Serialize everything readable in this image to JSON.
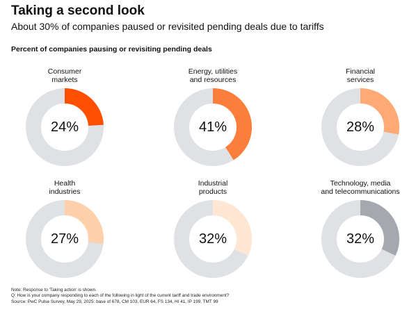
{
  "header": {
    "title": "Taking a second look",
    "subtitle": "About 30% of companies paused or revisited pending deals due to tariffs",
    "chart_label": "Percent of companies pausing or revisiting pending deals"
  },
  "colors": {
    "track": "#dfe1e4",
    "consumer_markets": "#fe5000",
    "energy": "#fd7e3a",
    "financial_services": "#ffaa74",
    "health_industries": "#ffd0aa",
    "industrial_products": "#ffe7d3",
    "technology": "#a5a8ae"
  },
  "chart_data": {
    "type": "pie",
    "title": "Percent of companies pausing or revisiting pending deals",
    "categories": [
      "Consumer markets",
      "Energy, utilities and resources",
      "Financial services",
      "Health industries",
      "Industrial products",
      "Technology, media and telecommunications"
    ],
    "series": [
      {
        "values": [
          24,
          41,
          28,
          27,
          32,
          32
        ]
      }
    ],
    "value_labels": [
      "24%",
      "41%",
      "28%",
      "27%",
      "32%",
      "32%"
    ],
    "label_lines": [
      "Consumer\nmarkets",
      "Energy, utilities\nand resources",
      "Financial\nservices",
      "Health\nindustries",
      "Industrial\nproducts",
      "Technology, media\nand telecommunications"
    ],
    "chart_style": "donut",
    "grid": false,
    "legend": "none"
  },
  "footer": {
    "note": "Note: Response to 'Taking action' is shown.",
    "question": "Q: How is your company responding to each of the following in light of the current tariff and trade environment?",
    "source": "Source: PwC Pulse Survey, May 29, 2025: base of 678, CM 103, EUR 64, FS 134, HI 41, IP 199, TMT 99"
  }
}
